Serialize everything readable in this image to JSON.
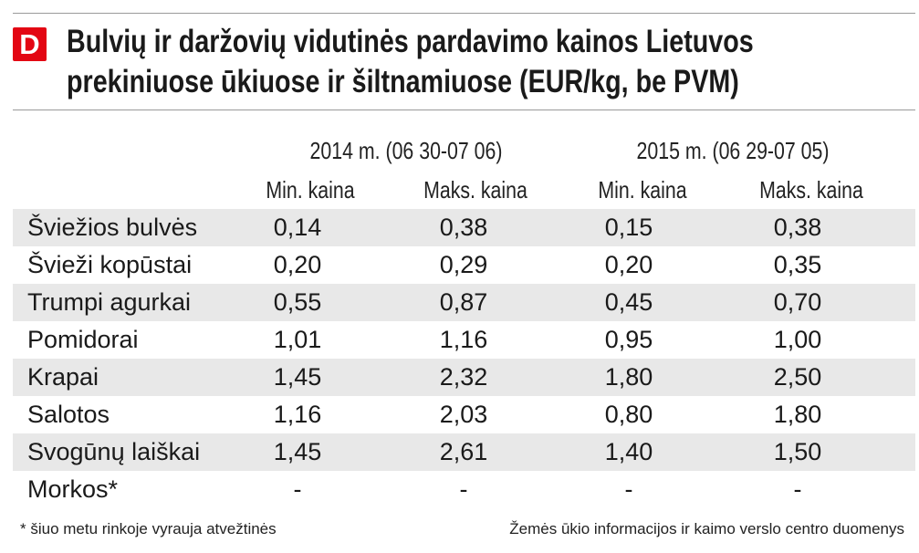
{
  "logo": {
    "letter": "D"
  },
  "title": {
    "line1": "Bulvių ir daržovių vidutinės pardavimo kainos Lietuvos",
    "line2": "prekiniuose ūkiuose ir šiltnamiuose (EUR/kg, be PVM)"
  },
  "periods": [
    {
      "label": "2014 m. (06 30-07 06)"
    },
    {
      "label": "2015 m. (06 29-07 05)"
    }
  ],
  "columns": [
    "Min. kaina",
    "Maks. kaina",
    "Min. kaina",
    "Maks. kaina"
  ],
  "rows": [
    {
      "name": "Šviežios bulvės",
      "values": [
        "0,14",
        "0,38",
        "0,15",
        "0,38"
      ]
    },
    {
      "name": "Švieži kopūstai",
      "values": [
        "0,20",
        "0,29",
        "0,20",
        "0,35"
      ]
    },
    {
      "name": "Trumpi agurkai",
      "values": [
        "0,55",
        "0,87",
        "0,45",
        "0,70"
      ]
    },
    {
      "name": "Pomidorai",
      "values": [
        "1,01",
        "1,16",
        "0,95",
        "1,00"
      ]
    },
    {
      "name": "Krapai",
      "values": [
        "1,45",
        "2,32",
        "1,80",
        "2,50"
      ]
    },
    {
      "name": "Salotos",
      "values": [
        "1,16",
        "2,03",
        "0,80",
        "1,80"
      ]
    },
    {
      "name": "Svogūnų laiškai",
      "values": [
        "1,45",
        "2,61",
        "1,40",
        "1,50"
      ]
    },
    {
      "name": "Morkos*",
      "values": [
        "-",
        "-",
        "-",
        "-"
      ]
    }
  ],
  "footnotes": {
    "left": "* šiuo metu rinkoje vyrauja atvežtinės",
    "right": "Žemės ūkio informacijos ir kaimo verslo centro duomenys"
  },
  "colors": {
    "logo_red": "#e30613",
    "row_shade": "#e8e8e8",
    "rule": "#9a9a9a"
  }
}
